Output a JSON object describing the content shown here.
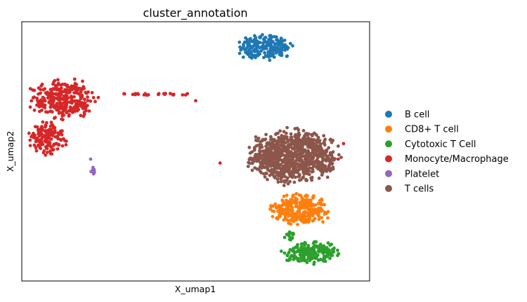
{
  "chart_data": {
    "type": "scatter",
    "title": "cluster_annotation",
    "xlabel": "X_umap1",
    "ylabel": "X_umap2",
    "xlim": [
      0,
      10
    ],
    "ylim": [
      0,
      10
    ],
    "grid": false,
    "ticks_shown": false,
    "legend_position": "right",
    "series": [
      {
        "name": "B cell",
        "color": "#1f77b4",
        "clusters": [
          {
            "cx": 7.0,
            "cy": 9.0,
            "rx": 0.9,
            "ry": 0.6,
            "n": 200
          }
        ]
      },
      {
        "name": "CD8+ T cell",
        "color": "#ff7f0e",
        "clusters": [
          {
            "cx": 8.0,
            "cy": 2.75,
            "rx": 1.0,
            "ry": 0.65,
            "n": 300
          }
        ]
      },
      {
        "name": "Cytotoxic T Cell",
        "color": "#2ca02c",
        "clusters": [
          {
            "cx": 8.35,
            "cy": 1.08,
            "rx": 0.95,
            "ry": 0.48,
            "n": 200
          },
          {
            "cx": 7.7,
            "cy": 1.75,
            "rx": 0.2,
            "ry": 0.2,
            "n": 14
          }
        ]
      },
      {
        "name": "Monocyte/Macrophage",
        "color": "#d62728",
        "clusters": [
          {
            "cx": 1.2,
            "cy": 7.0,
            "rx": 1.1,
            "ry": 0.9,
            "n": 300
          },
          {
            "cx": 0.75,
            "cy": 5.5,
            "rx": 0.6,
            "ry": 0.75,
            "n": 150
          },
          {
            "cx": 3.9,
            "cy": 7.2,
            "rx": 1.3,
            "ry": 0.05,
            "n": 24
          }
        ],
        "outliers": [
          {
            "x": 5.0,
            "y": 6.95
          },
          {
            "x": 5.7,
            "y": 4.55
          },
          {
            "x": 9.25,
            "y": 5.3
          },
          {
            "x": 9.1,
            "y": 4.7
          }
        ]
      },
      {
        "name": "Platelet",
        "color": "#9467bd",
        "clusters": [
          {
            "cx": 2.05,
            "cy": 4.25,
            "rx": 0.1,
            "ry": 0.14,
            "n": 14
          }
        ],
        "outliers": [
          {
            "x": 1.98,
            "y": 4.7
          }
        ]
      },
      {
        "name": "T cells",
        "color": "#8c564b",
        "clusters": [
          {
            "cx": 7.8,
            "cy": 4.8,
            "rx": 1.45,
            "ry": 1.15,
            "n": 900
          }
        ]
      }
    ]
  }
}
